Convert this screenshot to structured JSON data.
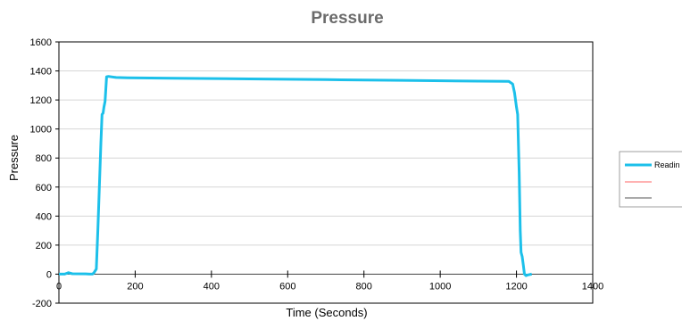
{
  "chart_data": {
    "type": "line",
    "title": "Pressure",
    "xlabel": "Time (Seconds)",
    "ylabel": "Pressure",
    "xlim": [
      0,
      1400
    ],
    "ylim": [
      -200,
      1600
    ],
    "xticks": [
      0,
      200,
      400,
      600,
      800,
      1000,
      1200,
      1400
    ],
    "yticks": [
      -200,
      0,
      200,
      400,
      600,
      800,
      1000,
      1200,
      1400,
      1600
    ],
    "grid": "horizontal",
    "legend_position": "right",
    "series": [
      {
        "name": "Readin",
        "color": "#1cc0ea",
        "x": [
          0,
          15,
          25,
          35,
          70,
          80,
          88,
          92,
          98,
          102,
          106,
          110,
          113,
          116,
          118,
          121,
          125,
          130,
          150,
          180,
          300,
          500,
          700,
          900,
          1100,
          1180,
          1190,
          1195,
          1200,
          1203,
          1207,
          1210,
          1212,
          1215,
          1218,
          1221,
          1225,
          1230,
          1240
        ],
        "y": [
          0,
          0,
          10,
          3,
          2,
          0,
          0,
          10,
          35,
          300,
          600,
          900,
          1100,
          1110,
          1150,
          1190,
          1360,
          1362,
          1355,
          1353,
          1350,
          1345,
          1340,
          1335,
          1330,
          1328,
          1310,
          1250,
          1150,
          1100,
          700,
          300,
          150,
          120,
          60,
          0,
          -10,
          -5,
          0
        ]
      },
      {
        "name": "",
        "color": "#ff6666",
        "x": [],
        "y": []
      },
      {
        "name": "",
        "color": "#555555",
        "x": [],
        "y": []
      }
    ]
  }
}
